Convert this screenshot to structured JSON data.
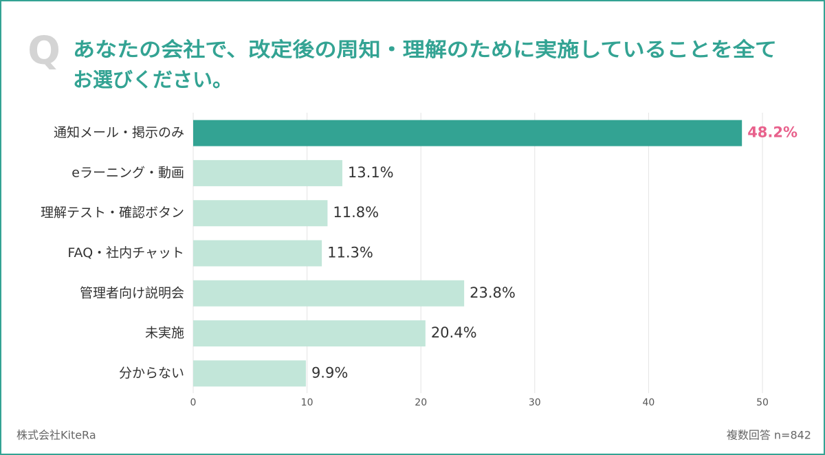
{
  "chart_data": {
    "type": "barh",
    "icon": "Q",
    "title": [
      "あなたの会社で、改定後の周知・理解のために実施していることを全て",
      "お選びください。"
    ],
    "categories": [
      "通知メール・掲示のみ",
      "eラーニング・動画",
      "理解テスト・確認ボタン",
      "FAQ・社内チャット",
      "管理者向け説明会",
      "未実施",
      "分からない"
    ],
    "values": [
      48.2,
      13.1,
      11.8,
      11.3,
      23.8,
      20.4,
      9.9
    ],
    "value_labels": [
      "48.2%",
      "13.1%",
      "11.8%",
      "11.3%",
      "23.8%",
      "20.4%",
      "9.9%"
    ],
    "colors": [
      "#33a393",
      "#c2e6d9",
      "#c2e6d9",
      "#c2e6d9",
      "#c2e6d9",
      "#c2e6d9",
      "#c2e6d9"
    ],
    "label_colors": [
      "#e8618c",
      "#333333",
      "#333333",
      "#333333",
      "#333333",
      "#333333",
      "#333333"
    ],
    "xlim": [
      0,
      50
    ],
    "xticks": [
      0,
      10,
      20,
      30,
      40,
      50
    ],
    "grid": true,
    "source": "株式会社KiteRa",
    "note": "複数回答 n=842"
  }
}
